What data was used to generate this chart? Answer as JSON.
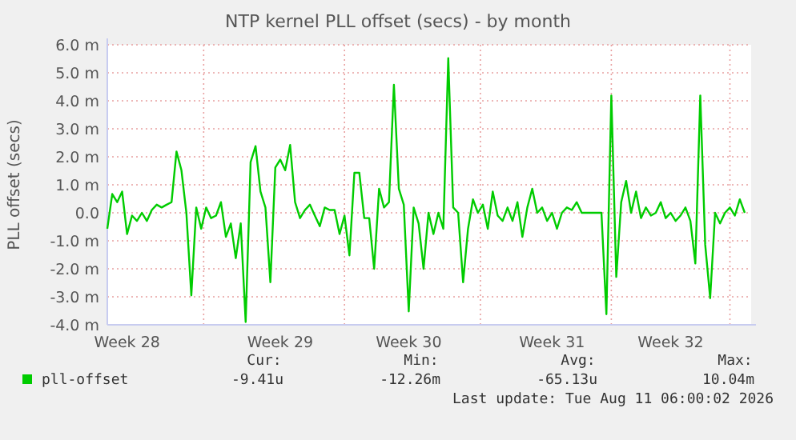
{
  "chart_data": {
    "type": "line",
    "title": "NTP kernel PLL offset (secs) - by month",
    "ylabel": "PLL offset (secs)",
    "categories": [
      null,
      null,
      null,
      null,
      "Week 28",
      null,
      null,
      null,
      null,
      null,
      null,
      null,
      null,
      null,
      null,
      null,
      null,
      null,
      null,
      null,
      null,
      null,
      null,
      null,
      null,
      null,
      null,
      null,
      null,
      null,
      null,
      null,
      null,
      null,
      null,
      "Week 29",
      null,
      null,
      null,
      null,
      null,
      null,
      null,
      null,
      null,
      null,
      null,
      null,
      null,
      null,
      null,
      null,
      null,
      null,
      null,
      null,
      null,
      null,
      null,
      null,
      null,
      "Week 30",
      null,
      null,
      null,
      null,
      null,
      null,
      null,
      null,
      null,
      null,
      null,
      null,
      null,
      null,
      null,
      null,
      null,
      null,
      null,
      null,
      null,
      null,
      null,
      null,
      null,
      null,
      null,
      null,
      "Week 31",
      null,
      null,
      null,
      null,
      null,
      null,
      null,
      null,
      null,
      null,
      null,
      null,
      null,
      null,
      null,
      null,
      null,
      null,
      null,
      null,
      null,
      null,
      null,
      "Week 32",
      null,
      null,
      null,
      null,
      null,
      null,
      null,
      null,
      null,
      null,
      null,
      null,
      null,
      null,
      null
    ],
    "series": [
      {
        "name": "pll-offset",
        "color": "#00cc00",
        "values": [
          -0.57,
          0.67,
          0.38,
          0.76,
          -0.76,
          -0.1,
          -0.29,
          0,
          -0.29,
          0.1,
          0.29,
          0.19,
          0.29,
          0.38,
          2.19,
          1.52,
          0,
          -2.95,
          0.19,
          -0.57,
          0.19,
          -0.19,
          -0.1,
          0.38,
          -0.86,
          -0.38,
          -1.62,
          -0.38,
          -3.9,
          1.81,
          2.38,
          0.76,
          0.19,
          -2.48,
          1.62,
          1.9,
          1.52,
          2.42,
          0.38,
          -0.19,
          0.1,
          0.29,
          -0.1,
          -0.48,
          0.19,
          0.1,
          0.1,
          -0.76,
          -0.1,
          -1.52,
          1.43,
          1.43,
          -0.19,
          -0.19,
          -2.0,
          0.86,
          0.19,
          0.38,
          4.57,
          0.86,
          0.29,
          -3.52,
          0.19,
          -0.38,
          -2.0,
          0,
          -0.76,
          0,
          -0.57,
          5.52,
          0.19,
          0,
          -2.48,
          -0.57,
          0.48,
          0,
          0.29,
          -0.57,
          0.76,
          -0.1,
          -0.29,
          0.19,
          -0.29,
          0.38,
          -0.86,
          0.19,
          0.86,
          0,
          0.19,
          -0.29,
          0,
          -0.57,
          0,
          0.19,
          0.1,
          0.38,
          0,
          0,
          0,
          0,
          0,
          -3.62,
          4.19,
          -2.29,
          0.38,
          1.14,
          0,
          0.76,
          -0.19,
          0.19,
          -0.1,
          0,
          0.38,
          -0.19,
          0,
          -0.29,
          -0.1,
          0.19,
          -0.29,
          -1.81,
          4.19,
          -1.14,
          -3.05,
          0,
          -0.38,
          0,
          0.19,
          -0.1,
          0.48,
          0
        ]
      }
    ],
    "ylim": [
      -4,
      6
    ],
    "yticks": [
      {
        "value": -4,
        "label": "-4.0 m"
      },
      {
        "value": -3,
        "label": "-3.0 m"
      },
      {
        "value": -2,
        "label": "-2.0 m"
      },
      {
        "value": -1,
        "label": "-1.0 m"
      },
      {
        "value": 0,
        "label": "0.0"
      },
      {
        "value": 1,
        "label": "1.0 m"
      },
      {
        "value": 2,
        "label": "2.0 m"
      },
      {
        "value": 3,
        "label": "3.0 m"
      },
      {
        "value": 4,
        "label": "4.0 m"
      },
      {
        "value": 5,
        "label": "5.0 m"
      },
      {
        "value": 6,
        "label": "6.0 m"
      }
    ],
    "grid": true,
    "legend": "bottom",
    "marker": "none",
    "line_style": "solid",
    "annotations": [
      "Cur:",
      "Min:",
      "Avg:",
      "Max:",
      "-9.41u",
      "-12.26m",
      "-65.13u",
      "10.04m",
      "Last update: Tue Aug 11 06:00:02 2026"
    ]
  }
}
